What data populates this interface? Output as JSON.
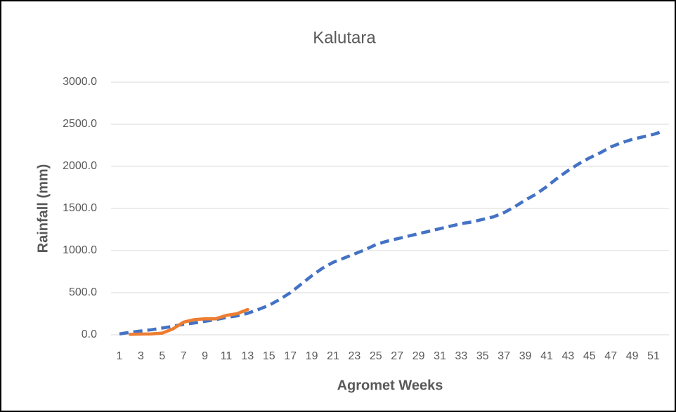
{
  "chart_data": {
    "type": "line",
    "title": "Kalutara",
    "xlabel": "Agromet Weeks",
    "ylabel": "Rainfall (mm)",
    "categories": [
      "1",
      null,
      "3",
      null,
      "5",
      null,
      "7",
      null,
      "9",
      null,
      "11",
      null,
      "13",
      null,
      "15",
      null,
      "17",
      null,
      "19",
      null,
      "21",
      null,
      "23",
      null,
      "25",
      null,
      "27",
      null,
      "29",
      null,
      "31",
      null,
      "33",
      null,
      "35",
      null,
      "37",
      null,
      "39",
      null,
      "41",
      null,
      "43",
      null,
      "45",
      null,
      "47",
      null,
      "49",
      null,
      "51",
      null
    ],
    "series": [
      {
        "color": "#4472c4",
        "dash": true,
        "values": [
          10,
          30,
          45,
          60,
          80,
          100,
          125,
          140,
          160,
          180,
          205,
          225,
          255,
          300,
          350,
          420,
          500,
          600,
          700,
          790,
          860,
          910,
          960,
          1010,
          1070,
          1110,
          1140,
          1170,
          1200,
          1230,
          1260,
          1290,
          1320,
          1340,
          1370,
          1400,
          1450,
          1520,
          1600,
          1670,
          1760,
          1860,
          1950,
          2030,
          2100,
          2160,
          2230,
          2280,
          2320,
          2350,
          2380,
          2420
        ]
      },
      {
        "color": "#ed7d31",
        "dash": false,
        "values": [
          null,
          5,
          8,
          10,
          20,
          70,
          150,
          180,
          190,
          190,
          230,
          250,
          300,
          null,
          null,
          null,
          null,
          null,
          null,
          null,
          null,
          null,
          null,
          null,
          null,
          null,
          null,
          null,
          null,
          null,
          null,
          null,
          null,
          null,
          null,
          null,
          null,
          null,
          null,
          null,
          null,
          null,
          null,
          null,
          null,
          null,
          null,
          null,
          null,
          null,
          null,
          null
        ]
      }
    ],
    "ylim": [
      0,
      3000
    ],
    "yticks": [
      {
        "value": 0,
        "label": "0.0"
      },
      {
        "value": 500,
        "label": "500.0"
      },
      {
        "value": 1000,
        "label": "1000.0"
      },
      {
        "value": 1500,
        "label": "1500.0"
      },
      {
        "value": 2000,
        "label": "2000.0"
      },
      {
        "value": 2500,
        "label": "2500.0"
      },
      {
        "value": 3000,
        "label": "3000.0"
      }
    ],
    "grid": true
  }
}
